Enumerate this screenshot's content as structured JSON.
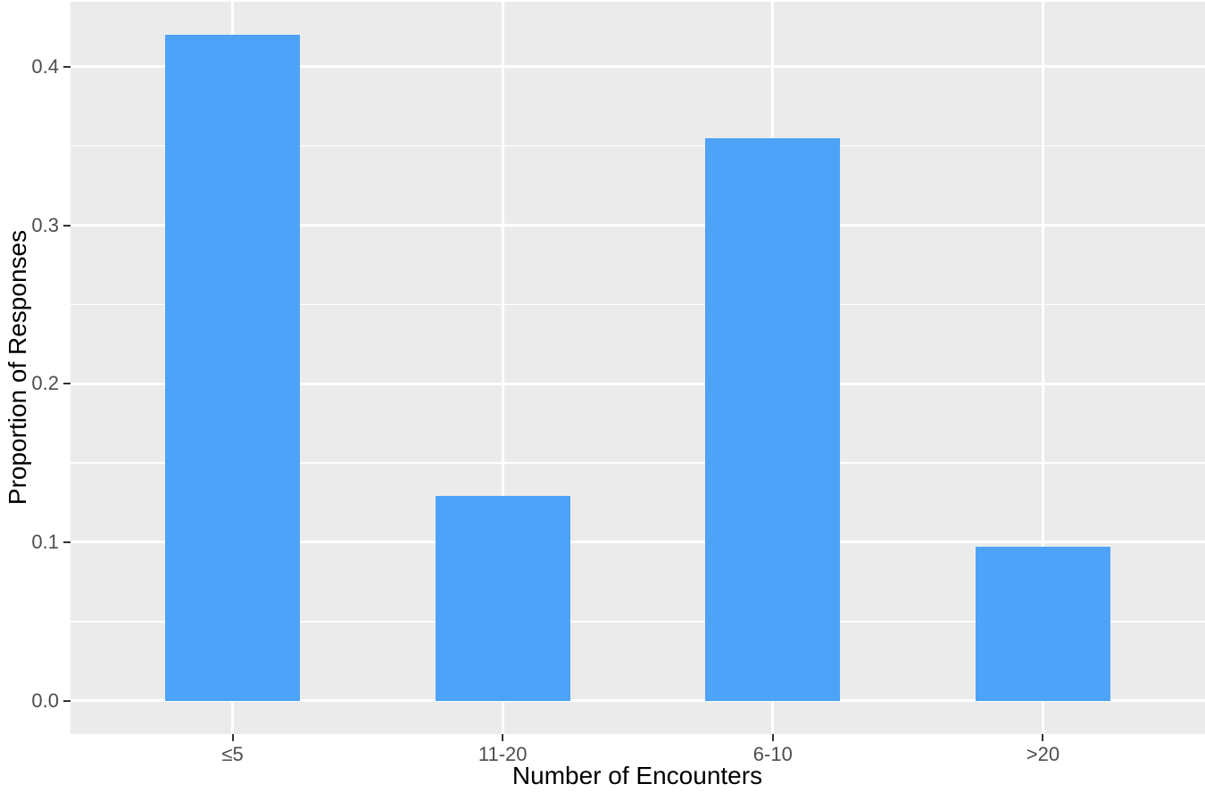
{
  "chart_data": {
    "type": "bar",
    "categories": [
      "≤5",
      "11-20",
      "6-10",
      ">20"
    ],
    "values": [
      0.42,
      0.129,
      0.355,
      0.097
    ],
    "title": "",
    "xlabel": "Number of Encounters",
    "ylabel": "Proportion of Responses",
    "data_range": [
      0,
      0.42
    ],
    "ylim": [
      -0.021,
      0.441
    ],
    "y_major_ticks": [
      0.0,
      0.1,
      0.2,
      0.3,
      0.4
    ],
    "y_tick_labels": [
      "0.0",
      "0.1",
      "0.2",
      "0.3",
      "0.4"
    ],
    "y_minor_ticks": [
      0.05,
      0.15,
      0.25,
      0.35
    ],
    "grid": true,
    "legend_position": "none",
    "bar_width_fraction": 0.5,
    "style": "ggplot2-grey-theme",
    "colors": {
      "bar_fill": "#4CA3F7",
      "panel_background": "#EBEBEB",
      "gridline": "#FFFFFF",
      "axis_text": "#4D4D4D",
      "axis_title": "#000000",
      "tick_mark": "#333333",
      "figure_background": "#FFFFFF"
    }
  }
}
